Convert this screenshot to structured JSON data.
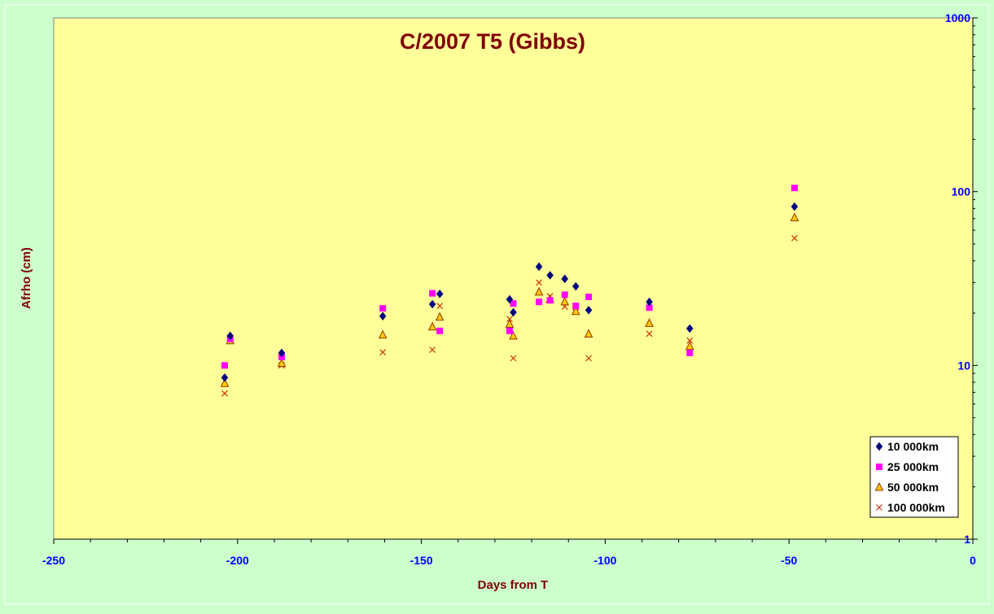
{
  "chart_data": {
    "type": "scatter",
    "title": "C/2007 T5 (Gibbs)",
    "xlabel": "Days from T",
    "ylabel": "Afrho (cm)",
    "xlim": [
      -250,
      0
    ],
    "ylim": [
      1,
      1000
    ],
    "y_scale": "log",
    "y_axis_side": "right",
    "x_ticks": [
      -250,
      -200,
      -150,
      -100,
      -50,
      0
    ],
    "y_ticks": [
      1,
      10,
      100,
      1000
    ],
    "x_tick_labels": [
      "-250",
      "-200",
      "-150",
      "-100",
      "-50",
      "0"
    ],
    "y_tick_labels": [
      "1",
      "10",
      "100",
      "1000"
    ],
    "grid": false,
    "legend_position": "bottom-right",
    "colors": {
      "background": "#ccffcc",
      "plot_area": "#ffff99",
      "title": "#800000",
      "axis_labels": "#800000",
      "tick_labels": "#0000ff",
      "axis": "#000000"
    },
    "series": [
      {
        "name": "10 000km",
        "marker": "diamond",
        "color": "#000080",
        "points": [
          [
            -203.5,
            8.5
          ],
          [
            -202,
            14.8
          ],
          [
            -188,
            11.8
          ],
          [
            -160.5,
            19.2
          ],
          [
            -147,
            22.5
          ],
          [
            -145,
            25.8
          ],
          [
            -126,
            24.0
          ],
          [
            -125,
            20.2
          ],
          [
            -118,
            37.0
          ],
          [
            -115,
            33.0
          ],
          [
            -111,
            31.5
          ],
          [
            -108,
            28.5
          ],
          [
            -104.5,
            20.8
          ],
          [
            -88,
            23.2
          ],
          [
            -77,
            16.3
          ],
          [
            -48.5,
            82.0
          ]
        ]
      },
      {
        "name": "25 000km",
        "marker": "square",
        "color": "#ff00ff",
        "points": [
          [
            -203.5,
            10.0
          ],
          [
            -202,
            14.2
          ],
          [
            -188,
            11.2
          ],
          [
            -160.5,
            21.3
          ],
          [
            -147,
            26.0
          ],
          [
            -145,
            15.8
          ],
          [
            -126,
            15.8
          ],
          [
            -125,
            22.7
          ],
          [
            -118,
            23.2
          ],
          [
            -115,
            23.7
          ],
          [
            -111,
            25.5
          ],
          [
            -108,
            22.0
          ],
          [
            -104.5,
            24.8
          ],
          [
            -88,
            21.5
          ],
          [
            -77,
            11.8
          ],
          [
            -48.5,
            105.0
          ]
        ]
      },
      {
        "name": "50 000km",
        "marker": "triangle",
        "color": "#ffcc00",
        "points": [
          [
            -203.5,
            7.9
          ],
          [
            -202,
            13.9
          ],
          [
            -188,
            10.3
          ],
          [
            -160.5,
            15.0
          ],
          [
            -147,
            16.7
          ],
          [
            -145,
            19.0
          ],
          [
            -126,
            17.3
          ],
          [
            -125,
            14.8
          ],
          [
            -118,
            26.5
          ],
          [
            -115,
            24.0
          ],
          [
            -111,
            23.3
          ],
          [
            -108,
            20.5
          ],
          [
            -104.5,
            15.2
          ],
          [
            -88,
            17.5
          ],
          [
            -77,
            12.9
          ],
          [
            -48.5,
            71.0
          ]
        ]
      },
      {
        "name": "100 000km",
        "marker": "x",
        "color": "#cc3300",
        "points": [
          [
            -203.5,
            6.9
          ],
          [
            -202,
            14.0
          ],
          [
            -188,
            10.0
          ],
          [
            -160.5,
            11.9
          ],
          [
            -147,
            12.3
          ],
          [
            -145,
            22.0
          ],
          [
            -126,
            18.5
          ],
          [
            -125,
            11.0
          ],
          [
            -118,
            30.0
          ],
          [
            -115,
            25.0
          ],
          [
            -111,
            21.8
          ],
          [
            -108,
            20.3
          ],
          [
            -104.5,
            11.0
          ],
          [
            -88,
            15.2
          ],
          [
            -77,
            13.9
          ],
          [
            -48.5,
            54.0
          ]
        ]
      }
    ]
  }
}
